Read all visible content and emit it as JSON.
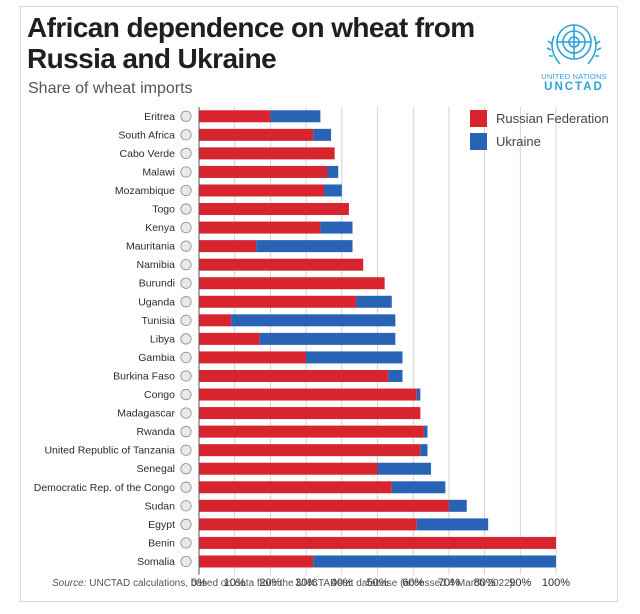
{
  "title": "African dependence on wheat from Russia and Ukraine",
  "subtitle": "Share of wheat imports",
  "logo": {
    "line1": "UNITED NATIONS",
    "line2": "UNCTAD",
    "icon": "un-emblem-icon"
  },
  "source": {
    "label": "Source:",
    "text": "UNCTAD calculations, based on data from the UNCTADstat database (accessed 4 March 2022)."
  },
  "colors": {
    "russia": "#d7242e",
    "ukraine": "#2963b5",
    "grid": "#c9c9c9",
    "text": "#2b2b2b"
  },
  "chart_data": {
    "type": "bar",
    "orientation": "horizontal",
    "stacked": true,
    "categories": [
      "Eritrea",
      "South Africa",
      "Cabo Verde",
      "Malawi",
      "Mozambique",
      "Togo",
      "Kenya",
      "Mauritania",
      "Namibia",
      "Burundi",
      "Uganda",
      "Tunisia",
      "Libya",
      "Gambia",
      "Burkina Faso",
      "Congo",
      "Madagascar",
      "Rwanda",
      "United Republic of Tanzania",
      "Senegal",
      "Democratic Rep. of the Congo",
      "Sudan",
      "Egypt",
      "Benin",
      "Somalia"
    ],
    "series": [
      {
        "name": "Russian Federation",
        "values": [
          20,
          32,
          38,
          36,
          35,
          42,
          34,
          16,
          46,
          52,
          44,
          9,
          17,
          30,
          53,
          61,
          62,
          63,
          62,
          50,
          54,
          70,
          61,
          100,
          32
        ]
      },
      {
        "name": "Ukraine",
        "values": [
          14,
          5,
          0,
          3,
          5,
          0,
          9,
          27,
          0,
          0,
          10,
          46,
          38,
          27,
          4,
          1,
          0,
          1,
          2,
          15,
          15,
          5,
          20,
          0,
          68
        ]
      }
    ],
    "xlim": [
      0,
      100
    ],
    "xticks": [
      "0%",
      "10%",
      "20%",
      "30%",
      "40%",
      "50%",
      "60%",
      "70%",
      "80%",
      "90%",
      "100%"
    ],
    "grid": true,
    "legend": "top-right"
  }
}
